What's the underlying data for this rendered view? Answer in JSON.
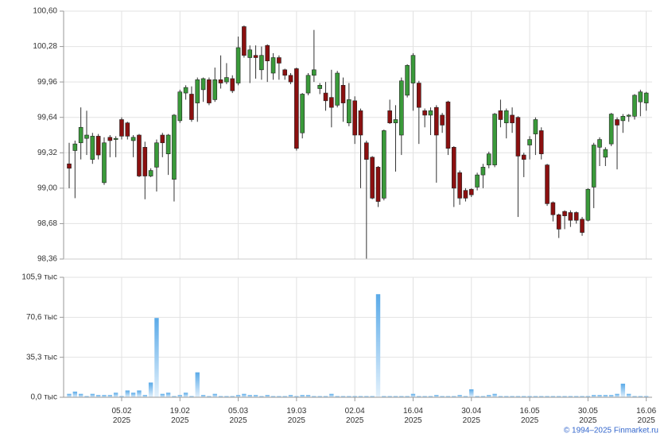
{
  "chart_data": [
    {
      "type": "candlestick",
      "up_color": "#3a9a3a",
      "down_color": "#8b1010",
      "ylim": [
        98.36,
        100.6
      ],
      "yticks": [
        {
          "value": 98.36,
          "label": "98,36"
        },
        {
          "value": 98.68,
          "label": "98,68"
        },
        {
          "value": 99.0,
          "label": "99,00"
        },
        {
          "value": 99.32,
          "label": "99,32"
        },
        {
          "value": 99.64,
          "label": "99,64"
        },
        {
          "value": 99.96,
          "label": "99,96"
        },
        {
          "value": 100.28,
          "label": "100,28"
        },
        {
          "value": 100.6,
          "label": "100,60"
        }
      ],
      "grid": true,
      "open": [
        99.22,
        99.34,
        99.41,
        99.45,
        99.26,
        99.47,
        99.05,
        99.46,
        99.44,
        99.62,
        99.59,
        99.43,
        99.48,
        99.37,
        99.11,
        99.19,
        99.48,
        99.31,
        99.08,
        99.61,
        99.86,
        99.85,
        99.77,
        99.89,
        99.98,
        99.8,
        99.98,
        99.96,
        99.99,
        99.95,
        100.46,
        100.18,
        100.2,
        100.07,
        100.29,
        100.04,
        100.18,
        100.07,
        100.02,
        100.08,
        99.5,
        99.86,
        100.02,
        99.9,
        99.86,
        99.82,
        99.75,
        99.93,
        99.59,
        99.79,
        99.7,
        99.41,
        99.28,
        99.19,
        98.91,
        99.7,
        99.59,
        99.48,
        99.84,
        99.95,
        99.95,
        99.7,
        99.66,
        99.73,
        99.66,
        99.78,
        99.37,
        99.14,
        98.98,
        98.99,
        99.01,
        99.12,
        99.21,
        99.21,
        99.7,
        99.59,
        99.66,
        99.64,
        99.3,
        99.39,
        99.49,
        99.52,
        99.21,
        98.87,
        98.76,
        98.79,
        98.78,
        98.78,
        98.72,
        98.71,
        99.01,
        99.37,
        99.28,
        99.4,
        99.62,
        99.61,
        99.65,
        99.65,
        99.78,
        99.77
      ],
      "high": [
        99.41,
        99.43,
        99.73,
        99.7,
        99.5,
        99.49,
        99.46,
        99.48,
        99.47,
        99.64,
        99.6,
        99.48,
        99.49,
        99.42,
        99.18,
        99.44,
        99.5,
        99.49,
        99.67,
        99.89,
        99.93,
        99.92,
        100.0,
        100.0,
        100.0,
        100.09,
        100.2,
        100.13,
        100.02,
        100.37,
        100.47,
        100.29,
        100.29,
        100.28,
        100.3,
        100.22,
        100.2,
        100.08,
        100.04,
        100.09,
        99.86,
        100.04,
        100.43,
        99.95,
        99.96,
        100.07,
        100.06,
        100.0,
        99.95,
        99.83,
        99.72,
        99.43,
        99.29,
        99.2,
        99.53,
        99.8,
        99.75,
        100.0,
        100.12,
        100.22,
        99.97,
        99.72,
        99.73,
        99.75,
        99.68,
        99.79,
        99.38,
        99.16,
        99.0,
        99.0,
        99.14,
        99.22,
        99.33,
        99.68,
        99.8,
        99.72,
        99.73,
        99.65,
        99.32,
        99.47,
        99.64,
        99.55,
        99.22,
        98.88,
        98.77,
        98.8,
        98.8,
        98.79,
        98.74,
        99.0,
        99.41,
        99.46,
        99.37,
        99.68,
        99.64,
        99.67,
        99.67,
        99.85,
        99.89,
        99.87
      ],
      "low": [
        99.0,
        98.91,
        99.26,
        99.3,
        99.22,
        99.26,
        99.03,
        99.28,
        99.28,
        99.44,
        99.44,
        99.28,
        99.1,
        98.9,
        99.1,
        98.97,
        99.28,
        99.12,
        98.88,
        99.59,
        99.8,
        99.6,
        99.6,
        99.78,
        99.75,
        99.78,
        99.9,
        99.94,
        99.86,
        99.93,
        100.18,
        99.95,
        99.99,
        99.98,
        99.96,
        99.98,
        99.98,
        99.98,
        99.94,
        99.34,
        99.45,
        99.84,
        99.96,
        99.85,
        99.7,
        99.55,
        99.73,
        99.6,
        99.56,
        99.4,
        99.0,
        98.36,
        98.9,
        98.83,
        98.89,
        99.58,
        99.15,
        99.3,
        99.82,
        99.7,
        99.4,
        99.55,
        99.48,
        99.05,
        99.5,
        99.3,
        98.83,
        98.85,
        98.88,
        98.92,
        98.98,
        99.0,
        99.18,
        99.19,
        99.55,
        99.45,
        99.5,
        98.74,
        99.1,
        99.26,
        99.3,
        99.26,
        98.84,
        98.7,
        98.55,
        98.63,
        98.65,
        98.68,
        98.57,
        98.7,
        98.82,
        99.2,
        99.2,
        99.38,
        99.17,
        99.5,
        99.6,
        99.62,
        99.65,
        99.7
      ],
      "close": [
        99.18,
        99.4,
        99.55,
        99.48,
        99.47,
        99.3,
        99.41,
        99.43,
        99.45,
        99.47,
        99.47,
        99.46,
        99.11,
        99.11,
        99.16,
        99.41,
        99.41,
        99.48,
        99.66,
        99.87,
        99.91,
        99.62,
        99.98,
        99.99,
        99.77,
        99.98,
        99.95,
        100.0,
        99.88,
        100.27,
        100.2,
        100.25,
        100.18,
        100.2,
        100.15,
        100.18,
        100.13,
        100.02,
        99.96,
        99.36,
        99.85,
        100.02,
        100.07,
        99.93,
        99.79,
        99.73,
        100.04,
        99.77,
        99.8,
        99.48,
        99.48,
        99.26,
        98.91,
        98.88,
        99.52,
        99.59,
        99.62,
        99.97,
        100.11,
        100.2,
        99.73,
        99.66,
        99.7,
        99.48,
        99.57,
        99.36,
        99.0,
        98.91,
        98.91,
        98.94,
        99.12,
        99.19,
        99.31,
        99.67,
        99.62,
        99.7,
        99.59,
        99.29,
        99.26,
        99.44,
        99.62,
        99.31,
        98.86,
        98.76,
        98.63,
        98.75,
        98.71,
        98.71,
        98.6,
        98.99,
        99.39,
        99.44,
        99.35,
        99.67,
        99.57,
        99.65,
        99.66,
        99.84,
        99.87,
        99.86
      ]
    },
    {
      "type": "bar",
      "color": "#5aaae8",
      "ylim": [
        0,
        105.9
      ],
      "yticks": [
        {
          "value": 0,
          "label": "0,0 тыс"
        },
        {
          "value": 35.3,
          "label": "35,3 тыс"
        },
        {
          "value": 70.6,
          "label": "70,6 тыс"
        },
        {
          "value": 105.9,
          "label": "105,9 тыс"
        }
      ],
      "grid": true,
      "categories": [
        null,
        null,
        null,
        null,
        null,
        null,
        null,
        null,
        null,
        "05.02\n2025",
        null,
        null,
        null,
        null,
        null,
        null,
        null,
        null,
        null,
        "19.02\n2025",
        null,
        null,
        null,
        null,
        null,
        null,
        null,
        null,
        null,
        "05.03\n2025",
        null,
        null,
        null,
        null,
        null,
        null,
        null,
        null,
        null,
        "19.03\n2025",
        null,
        null,
        null,
        null,
        null,
        null,
        null,
        null,
        null,
        "02.04\n2025",
        null,
        null,
        null,
        null,
        null,
        null,
        null,
        null,
        null,
        "16.04\n2025",
        null,
        null,
        null,
        null,
        null,
        null,
        null,
        null,
        null,
        "30.04\n2025",
        null,
        null,
        null,
        null,
        null,
        null,
        null,
        null,
        null,
        "16.05\n2025",
        null,
        null,
        null,
        null,
        null,
        null,
        null,
        null,
        null,
        "30.05\n2025",
        null,
        null,
        null,
        null,
        null,
        null,
        null,
        null,
        null,
        "16.06\n2025"
      ],
      "values": [
        3,
        5,
        3,
        1,
        3,
        2,
        2,
        2,
        4,
        1,
        6,
        4,
        6,
        2,
        13,
        70,
        3,
        4,
        1,
        2,
        4,
        1,
        22,
        2,
        1,
        3,
        1,
        1,
        1,
        2,
        3,
        2,
        2,
        1,
        2,
        1,
        1,
        1,
        2,
        1,
        2,
        2,
        1,
        1,
        1,
        3,
        1,
        1,
        1,
        1,
        1,
        1,
        1,
        91,
        1,
        1,
        1,
        1,
        1,
        3,
        1,
        1,
        1,
        2,
        1,
        1,
        1,
        2,
        1,
        7,
        1,
        1,
        2,
        3,
        1,
        1,
        1,
        1,
        1,
        1,
        1,
        1,
        1,
        1,
        1,
        1,
        1,
        1,
        1,
        1,
        2,
        2,
        2,
        2,
        3,
        12,
        3,
        1,
        1,
        1
      ]
    }
  ],
  "source": "© 1994–2025 Finmarket.ru"
}
